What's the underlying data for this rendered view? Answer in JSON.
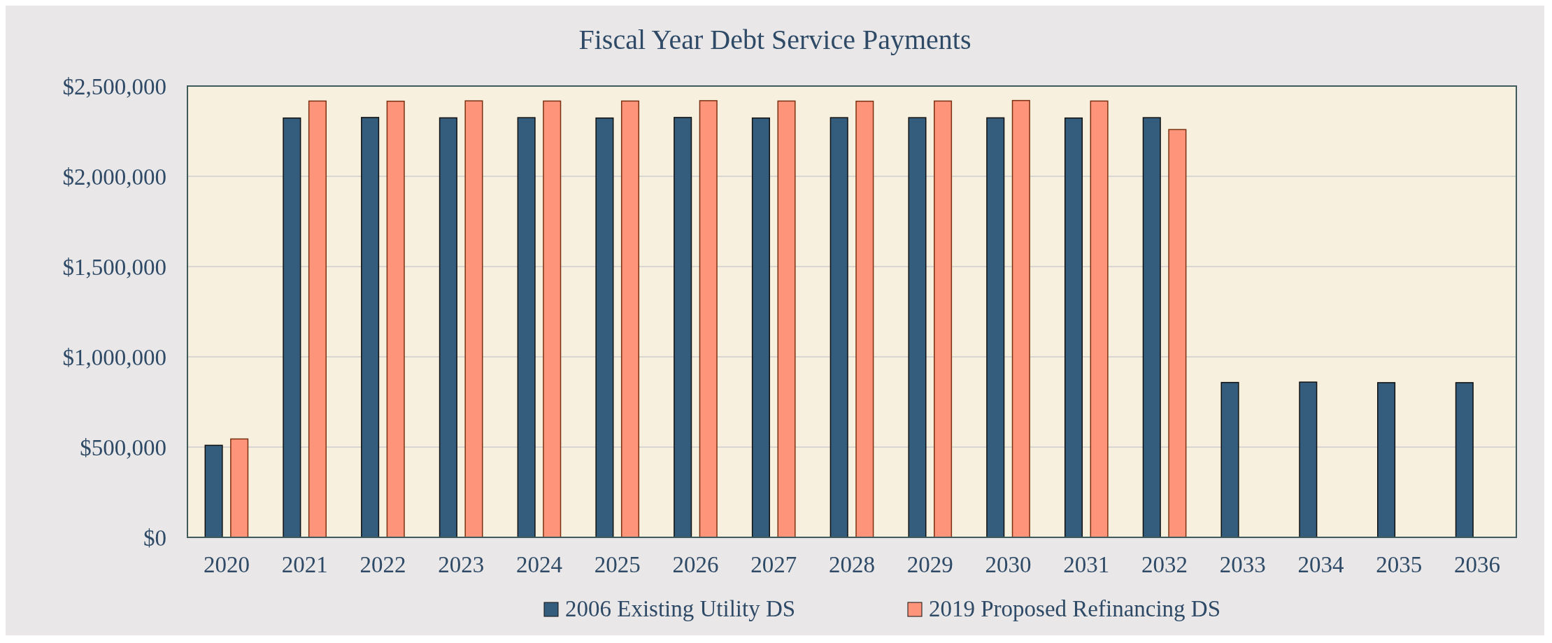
{
  "chart_data": {
    "type": "bar",
    "title": "Fiscal Year Debt Service Payments",
    "categories": [
      "2020",
      "2021",
      "2022",
      "2023",
      "2024",
      "2025",
      "2026",
      "2027",
      "2028",
      "2029",
      "2030",
      "2031",
      "2032",
      "2033",
      "2034",
      "2035",
      "2036"
    ],
    "series": [
      {
        "name": "2006 Existing Utility DS",
        "color": "#345c7c",
        "values": [
          510000,
          2323000,
          2326000,
          2324000,
          2325000,
          2323000,
          2326000,
          2323000,
          2325000,
          2325000,
          2324000,
          2323000,
          2325000,
          858000,
          860000,
          857000,
          857000
        ]
      },
      {
        "name": "2019 Proposed Refinancing DS",
        "color": "#fe9479",
        "values": [
          545000,
          2417000,
          2416000,
          2418000,
          2417000,
          2417000,
          2419000,
          2417000,
          2416000,
          2417000,
          2420000,
          2417000,
          2259000,
          null,
          null,
          null,
          null
        ]
      }
    ],
    "ylim": [
      0,
      2500000
    ],
    "yticks": [
      {
        "value": 0,
        "label": "$0"
      },
      {
        "value": 500000,
        "label": "$500,000"
      },
      {
        "value": 1000000,
        "label": "$1,000,000"
      },
      {
        "value": 1500000,
        "label": "$1,500,000"
      },
      {
        "value": 2000000,
        "label": "$2,000,000"
      },
      {
        "value": 2500000,
        "label": "$2,500,000"
      }
    ],
    "grid": "y",
    "legend": "bottom"
  }
}
